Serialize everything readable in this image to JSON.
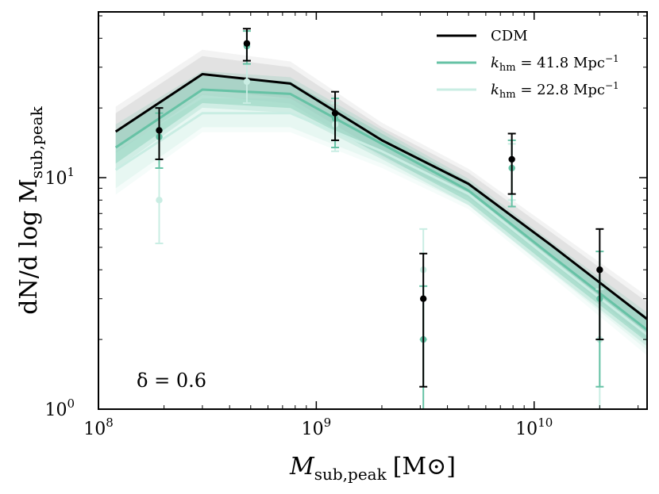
{
  "chart_data": {
    "type": "line",
    "title": "",
    "xlabel_main": "M",
    "xlabel_sub": "sub,peak",
    "xlabel_units": "[M⊙]",
    "ylabel_main": "dN/d log M",
    "ylabel_sub": "sub,peak",
    "xscale": "log",
    "yscale": "log",
    "xlim": [
      100000000,
      33000000000
    ],
    "ylim": [
      1.0,
      52.0
    ],
    "x_ticks": [
      {
        "value": 100000000,
        "base": "10",
        "exp": "8"
      },
      {
        "value": 1000000000,
        "base": "10",
        "exp": "9"
      },
      {
        "value": 10000000000,
        "base": "10",
        "exp": "10"
      }
    ],
    "y_ticks": [
      {
        "value": 1,
        "base": "10",
        "exp": "0"
      },
      {
        "value": 10,
        "base": "10",
        "exp": "1"
      }
    ],
    "legend": {
      "placement": "top-right",
      "entries": [
        {
          "label": "CDM",
          "color": "#000000"
        },
        {
          "label": "k_hm = 41.8 Mpc^-1",
          "prefix": "k",
          "sub": "hm",
          "main": " = 41.8 Mpc",
          "sup": "−1",
          "color": "#66c2a5"
        },
        {
          "label": "k_hm = 22.8 Mpc^-1",
          "prefix": "k",
          "sub": "hm",
          "main": " = 22.8 Mpc",
          "sup": "−1",
          "color": "#c9ede3"
        }
      ]
    },
    "annotation": "δ = 0.6",
    "series": [
      {
        "name": "CDM",
        "color": "#000000",
        "band_color": "#bdbdbd",
        "x": [
          120000000,
          300000000,
          760000000,
          2000000000,
          5000000000,
          12000000000,
          33000000000
        ],
        "y": [
          15.8,
          28.0,
          25.5,
          14.5,
          9.4,
          5.1,
          2.45
        ],
        "band_upper": [
          19.0,
          33.5,
          30.0,
          16.5,
          10.5,
          5.8,
          2.9
        ],
        "band_lower": [
          13.5,
          24.0,
          22.0,
          12.8,
          8.5,
          4.5,
          2.1
        ],
        "points": [
          {
            "x": 190000000,
            "y": 16.0,
            "err_hi": 20.0,
            "err_lo": 12.0
          },
          {
            "x": 480000000,
            "y": 38.0,
            "err_hi": 44.0,
            "err_lo": 32.0
          },
          {
            "x": 1220000000,
            "y": 19.0,
            "err_hi": 23.5,
            "err_lo": 14.5
          },
          {
            "x": 3100000000,
            "y": 3.0,
            "err_hi": 4.7,
            "err_lo": 1.25
          },
          {
            "x": 7900000000,
            "y": 12.0,
            "err_hi": 15.5,
            "err_lo": 8.5
          },
          {
            "x": 20000000000,
            "y": 4.0,
            "err_hi": 6.0,
            "err_lo": 2.0
          }
        ]
      },
      {
        "name": "k_hm = 41.8 Mpc^-1",
        "color": "#66c2a5",
        "band_color": "#66c2a5",
        "x": [
          120000000,
          300000000,
          760000000,
          2000000000,
          5000000000,
          12000000000,
          33000000000
        ],
        "y": [
          13.5,
          24.0,
          23.0,
          14.0,
          8.8,
          4.6,
          2.2
        ],
        "band_upper": [
          16.0,
          27.5,
          26.0,
          15.5,
          9.6,
          5.1,
          2.5
        ],
        "band_lower": [
          11.5,
          21.0,
          20.0,
          12.5,
          7.9,
          4.1,
          1.95
        ],
        "points": [
          {
            "x": 190000000,
            "y": 15.0,
            "err_hi": 19.0,
            "err_lo": 11.0
          },
          {
            "x": 480000000,
            "y": 37.0,
            "err_hi": 43.0,
            "err_lo": 31.0
          },
          {
            "x": 1220000000,
            "y": 18.0,
            "err_hi": 22.0,
            "err_lo": 13.5
          },
          {
            "x": 3100000000,
            "y": 2.0,
            "err_hi": 3.4,
            "err_lo": 1.0
          },
          {
            "x": 7900000000,
            "y": 11.0,
            "err_hi": 14.5,
            "err_lo": 7.5
          },
          {
            "x": 20000000000,
            "y": 3.0,
            "err_hi": 4.8,
            "err_lo": 1.25
          }
        ]
      },
      {
        "name": "k_hm = 22.8 Mpc^-1",
        "color": "#c9ede3",
        "band_color": "#c9ede3",
        "x": [
          120000000,
          300000000,
          760000000,
          2000000000,
          5000000000,
          12000000000,
          33000000000
        ],
        "y": [
          10.8,
          19.0,
          19.0,
          13.0,
          8.5,
          4.4,
          2.1
        ],
        "band_upper": [
          13.0,
          22.0,
          22.0,
          14.5,
          9.2,
          4.9,
          2.4
        ],
        "band_lower": [
          9.0,
          16.5,
          16.5,
          11.5,
          7.6,
          3.9,
          1.8
        ],
        "points": [
          {
            "x": 190000000,
            "y": 8.0,
            "err_hi": 11.0,
            "err_lo": 5.2
          },
          {
            "x": 480000000,
            "y": 26.0,
            "err_hi": 31.0,
            "err_lo": 21.0
          },
          {
            "x": 1220000000,
            "y": 17.0,
            "err_hi": 21.0,
            "err_lo": 13.0
          },
          {
            "x": 3100000000,
            "y": 4.0,
            "err_hi": 6.0,
            "err_lo": 2.0
          },
          {
            "x": 7900000000,
            "y": 11.0,
            "err_hi": 14.0,
            "err_lo": 8.0
          },
          {
            "x": 20000000000,
            "y": 2.0,
            "err_hi": 3.3,
            "err_lo": 1.0
          }
        ]
      }
    ]
  }
}
